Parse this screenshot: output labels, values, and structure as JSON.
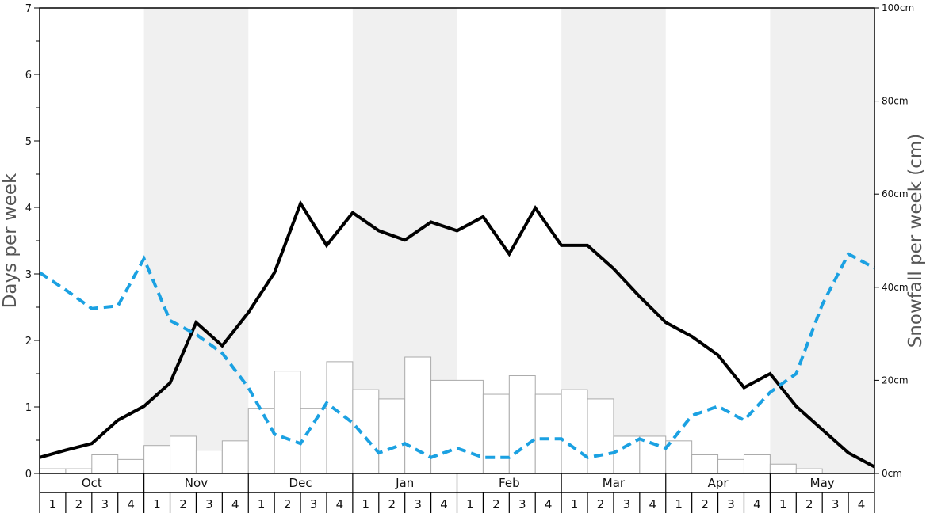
{
  "chart_data": {
    "type": "bar+line",
    "months": [
      "Oct",
      "Nov",
      "Dec",
      "Jan",
      "Feb",
      "Mar",
      "Apr",
      "May"
    ],
    "week_labels": [
      "1",
      "2",
      "3",
      "4"
    ],
    "ylabel_left": "Days per week",
    "ylabel_right": "Snowfall per week (cm)",
    "ylim_left": [
      0,
      7
    ],
    "ylim_right": [
      0,
      100
    ],
    "yticks_left": [
      "0",
      "1",
      "2",
      "3",
      "4",
      "5",
      "6",
      "7"
    ],
    "yticks_right": [
      "0cm",
      "20cm",
      "40cm",
      "60cm",
      "80cm",
      "100cm"
    ],
    "series": [
      {
        "kind": "bar",
        "axis": "right",
        "color": "#ffffff",
        "edge_color": "#aaaaaa",
        "values": [
          1,
          1,
          4,
          3,
          6,
          8,
          5,
          7,
          14,
          22,
          14,
          24,
          18,
          16,
          25,
          20,
          20,
          17,
          21,
          17,
          18,
          16,
          8,
          8,
          7,
          4,
          3,
          4,
          2,
          1,
          0,
          0
        ]
      },
      {
        "kind": "line",
        "axis": "left",
        "color": "#000000",
        "style": "solid",
        "values": [
          0.24,
          0.35,
          0.45,
          0.8,
          1.01,
          1.36,
          2.27,
          1.92,
          2.42,
          3.02,
          4.06,
          3.43,
          3.92,
          3.65,
          3.51,
          3.78,
          3.65,
          3.86,
          3.3,
          3.99,
          3.43,
          3.43,
          3.08,
          2.66,
          2.27,
          2.06,
          1.78,
          1.29,
          1.5,
          1.01,
          0.66,
          0.31,
          0.1
        ]
      },
      {
        "kind": "line",
        "axis": "left",
        "color": "#1ba1e2",
        "style": "dashed",
        "values": [
          3.02,
          2.76,
          2.48,
          2.52,
          3.23,
          2.3,
          2.09,
          1.81,
          1.29,
          0.59,
          0.45,
          1.06,
          0.76,
          0.31,
          0.45,
          0.24,
          0.38,
          0.24,
          0.24,
          0.52,
          0.52,
          0.24,
          0.31,
          0.52,
          0.38,
          0.87,
          1.01,
          0.8,
          1.22,
          1.5,
          2.54,
          3.3,
          3.09
        ]
      }
    ],
    "grid": false,
    "alternating_month_bands": "#f0f0f0"
  }
}
